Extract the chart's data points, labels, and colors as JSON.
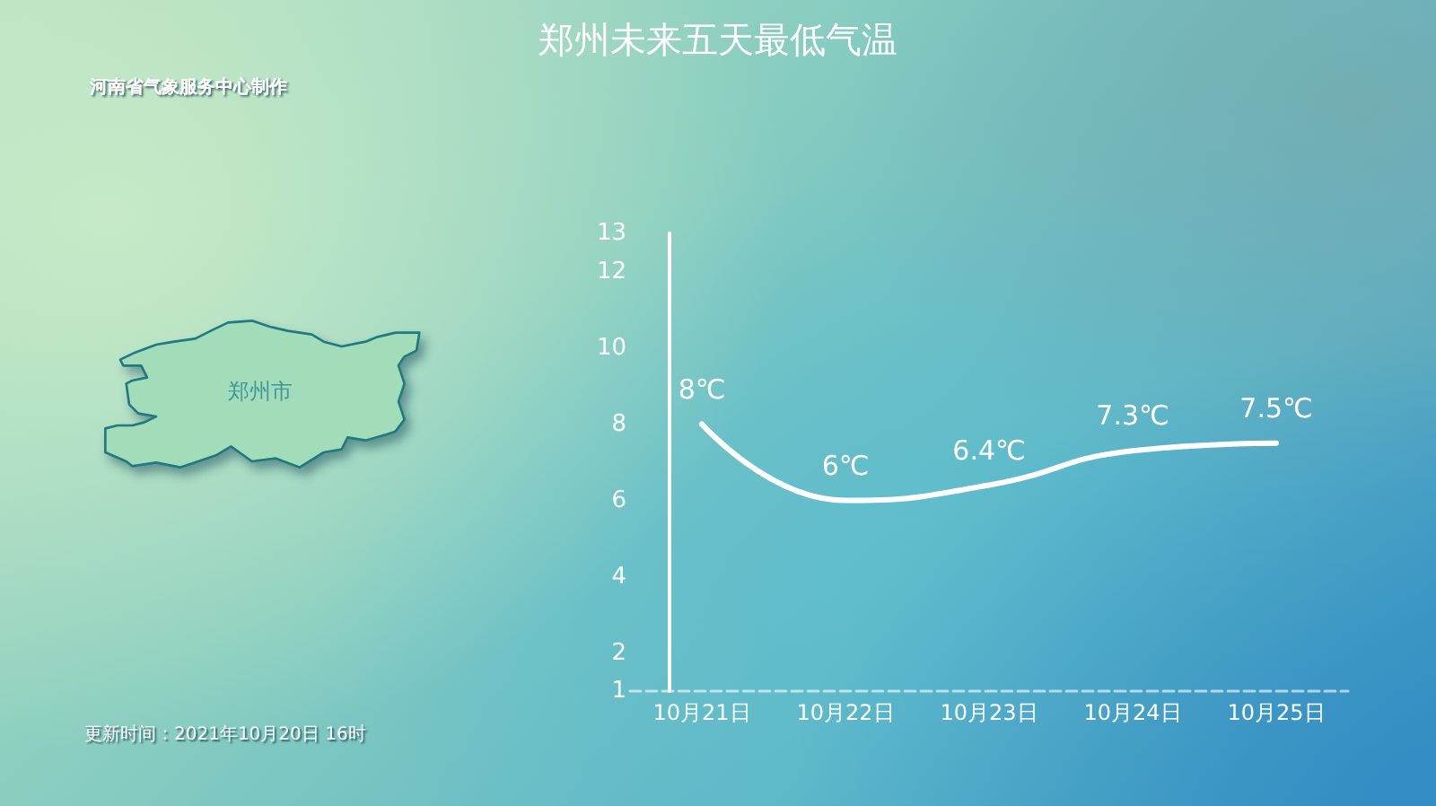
{
  "chart_data": {
    "type": "line",
    "title": "郑州未来五天最低气温",
    "subtitle": "河南省气象服务中心制作",
    "annotations": [
      "更新时间：2021年10月20日 16时",
      "郑州市"
    ],
    "categories": [
      "10月21日",
      "10月22日",
      "10月23日",
      "10月24日",
      "10月25日"
    ],
    "values": [
      8,
      6,
      6.4,
      7.3,
      7.5
    ],
    "color": "#ffffff",
    "value_labels": [
      "8℃",
      "6℃",
      "6.4℃",
      "7.3℃",
      "7.5℃"
    ],
    "ylim": [
      1,
      13
    ],
    "yticks": [
      1,
      2,
      4,
      6,
      8,
      10,
      12,
      13
    ]
  }
}
